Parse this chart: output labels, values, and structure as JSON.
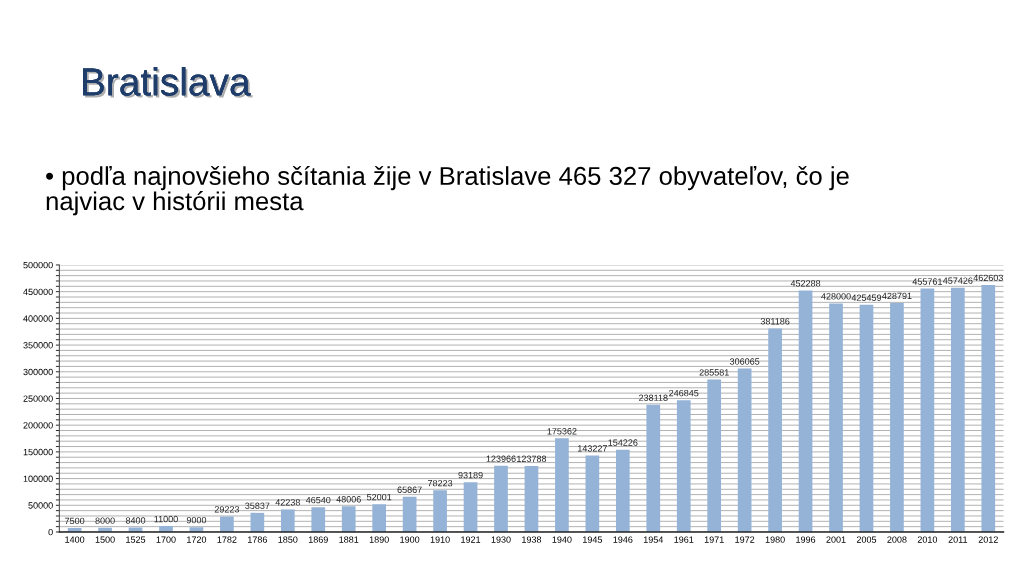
{
  "chart_data": {
    "type": "bar",
    "title": "Bratislava",
    "subtitle": "• podľa najnovšieho sčítania žije v Bratislave 465 327 obyvateľov, čo je\nnajviac v histórii mesta",
    "categories": [
      "1400",
      "1500",
      "1525",
      "1700",
      "1720",
      "1782",
      "1786",
      "1850",
      "1869",
      "1881",
      "1890",
      "1900",
      "1910",
      "1921",
      "1930",
      "1938",
      "1940",
      "1945",
      "1946",
      "1954",
      "1961",
      "1971",
      "1972",
      "1980",
      "1996",
      "2001",
      "2005",
      "2008",
      "2010",
      "2011",
      "2012"
    ],
    "values": [
      7500,
      8000,
      8400,
      11000,
      9000,
      29223,
      35837,
      42238,
      46540,
      48006,
      52001,
      65867,
      78223,
      93189,
      123966,
      123788,
      175362,
      143227,
      154226,
      238118,
      246845,
      285581,
      306065,
      381186,
      452288,
      428000,
      425459,
      428791,
      455761,
      457426,
      462603
    ],
    "color": "#95b3d7",
    "data_labels": true,
    "ylim": [
      0,
      500000
    ],
    "yticks": [
      0,
      {
        "value": 10000,
        "label": null
      },
      {
        "value": 20000,
        "label": null
      },
      {
        "value": 30000,
        "label": null
      },
      {
        "value": 40000,
        "label": null
      },
      50000,
      {
        "value": 60000,
        "label": null
      },
      {
        "value": 70000,
        "label": null
      },
      {
        "value": 80000,
        "label": null
      },
      {
        "value": 90000,
        "label": null
      },
      100000,
      {
        "value": 110000,
        "label": null
      },
      {
        "value": 120000,
        "label": null
      },
      {
        "value": 130000,
        "label": null
      },
      {
        "value": 140000,
        "label": null
      },
      150000,
      {
        "value": 160000,
        "label": null
      },
      {
        "value": 170000,
        "label": null
      },
      {
        "value": 180000,
        "label": null
      },
      {
        "value": 190000,
        "label": null
      },
      200000,
      {
        "value": 210000,
        "label": null
      },
      {
        "value": 220000,
        "label": null
      },
      {
        "value": 230000,
        "label": null
      },
      {
        "value": 240000,
        "label": null
      },
      250000,
      {
        "value": 260000,
        "label": null
      },
      {
        "value": 270000,
        "label": null
      },
      {
        "value": 280000,
        "label": null
      },
      {
        "value": 290000,
        "label": null
      },
      300000,
      {
        "value": 310000,
        "label": null
      },
      {
        "value": 320000,
        "label": null
      },
      {
        "value": 330000,
        "label": null
      },
      {
        "value": 340000,
        "label": null
      },
      350000,
      {
        "value": 360000,
        "label": null
      },
      {
        "value": 370000,
        "label": null
      },
      {
        "value": 380000,
        "label": null
      },
      {
        "value": 390000,
        "label": null
      },
      400000,
      {
        "value": 410000,
        "label": null
      },
      {
        "value": 420000,
        "label": null
      },
      {
        "value": 430000,
        "label": null
      },
      {
        "value": 440000,
        "label": null
      },
      450000,
      {
        "value": 460000,
        "label": null
      },
      {
        "value": 470000,
        "label": null
      },
      {
        "value": 480000,
        "label": null
      },
      {
        "value": 490000,
        "label": null
      },
      500000
    ],
    "grid": "y"
  }
}
